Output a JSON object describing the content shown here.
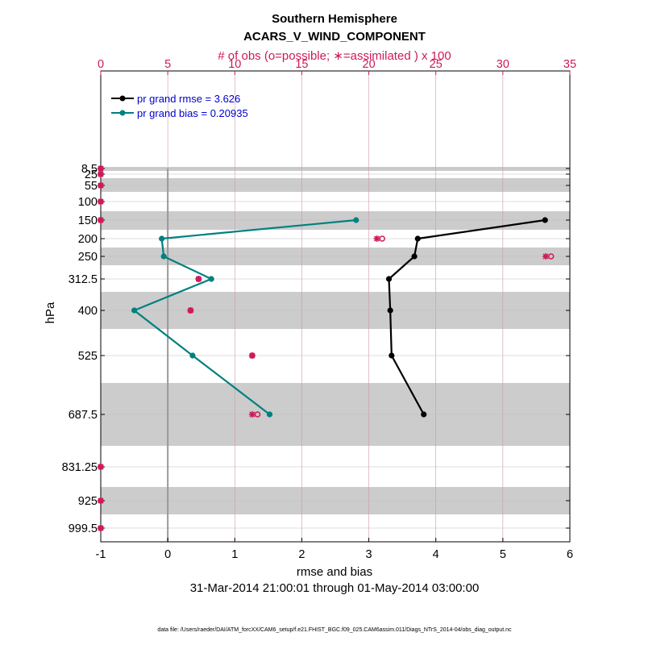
{
  "chart_data": {
    "type": "line",
    "title": "Southern Hemisphere",
    "subtitle": "ACARS_V_WIND_COMPONENT",
    "top_axis_label": "# of obs (o=possible; ∗=assimilated ) x 100",
    "xlabel": "rmse and bias",
    "ylabel": "hPa",
    "date_range": "31-Mar-2014 21:00:01 through 01-May-2014 03:00:00",
    "footnote": "data file: /Users/raeder/DAI/ATM_forcXX/CAM6_setup/f.e21.FHIST_BGC.f09_025.CAM6assim.011/Diags_NTrS_2014-04/obs_diag_output.nc",
    "xlim": [
      -1,
      6
    ],
    "xticks": [
      "-1",
      "0",
      "1",
      "2",
      "3",
      "4",
      "5",
      "6"
    ],
    "top_xlim": [
      0,
      35
    ],
    "top_xticks": [
      "0",
      "5",
      "10",
      "15",
      "20",
      "25",
      "30",
      "35"
    ],
    "yticks": [
      "8.5",
      "25",
      "55",
      "100",
      "150",
      "200",
      "250",
      "312.5",
      "400",
      "525",
      "687.5",
      "831.25",
      "925",
      "999.5"
    ],
    "series": [
      {
        "name": "pr grand rmse = 3.626",
        "color": "#000000",
        "levels": [
          150,
          200,
          250,
          312.5,
          400,
          525,
          687.5
        ],
        "values": [
          5.63,
          3.73,
          3.68,
          3.3,
          3.32,
          3.34,
          3.82
        ]
      },
      {
        "name": "pr grand bias = 0.20935",
        "color": "#008080",
        "levels": [
          150,
          200,
          250,
          312.5,
          400,
          525,
          687.5
        ],
        "values": [
          2.81,
          -0.09,
          -0.06,
          0.65,
          -0.5,
          0.37,
          1.52
        ]
      }
    ],
    "obs_counts": {
      "levels": [
        8.5,
        25,
        55,
        100,
        150,
        200,
        250,
        312.5,
        400,
        525,
        687.5,
        831.25,
        925,
        999.5
      ],
      "possible": [
        0,
        0,
        0,
        0,
        0,
        21,
        33.6,
        7.3,
        6.7,
        11.3,
        11.7,
        0,
        0,
        0
      ],
      "assimilated": [
        0,
        0,
        0,
        0,
        0,
        20.6,
        33.2,
        7.3,
        6.7,
        11.3,
        11.3,
        0,
        0,
        0
      ]
    },
    "colors": {
      "obs": "#cc1a5a",
      "band": "#cccccc",
      "grid": "#cc9aab"
    }
  }
}
